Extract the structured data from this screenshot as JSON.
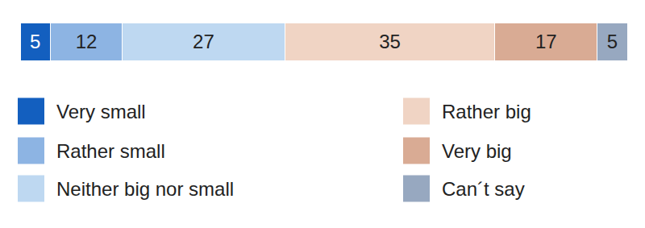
{
  "chart_data": {
    "type": "bar",
    "orientation": "horizontal",
    "stacked": true,
    "data_labels": true,
    "tick_labels": false,
    "categories": [
      null
    ],
    "xlim": [
      0,
      101
    ],
    "series": [
      {
        "name": "Very small",
        "color": "#135fbf",
        "values": [
          5
        ]
      },
      {
        "name": "Rather small",
        "color": "#8db4e3",
        "values": [
          12
        ]
      },
      {
        "name": "Neither big nor small",
        "color": "#bed8f1",
        "values": [
          27
        ]
      },
      {
        "name": "Rather big",
        "color": "#f0d4c4",
        "values": [
          35
        ]
      },
      {
        "name": "Very big",
        "color": "#d9ab94",
        "values": [
          17
        ]
      },
      {
        "name": "Can´t say",
        "color": "#97a8c0",
        "values": [
          5
        ]
      }
    ]
  }
}
